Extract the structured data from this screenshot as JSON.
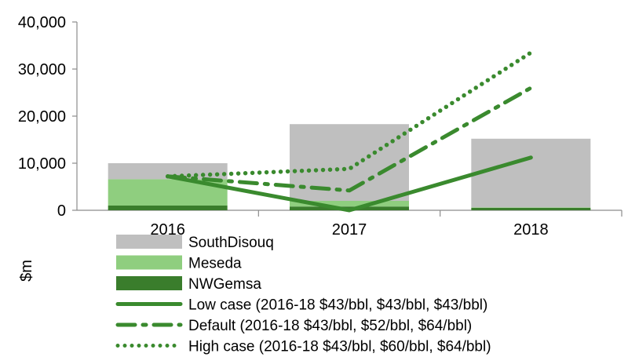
{
  "chart_data": {
    "type": "bar",
    "ylabel": "$m",
    "ylim": [
      0,
      40000
    ],
    "yticks": [
      0,
      10000,
      20000,
      30000,
      40000
    ],
    "ytick_labels": [
      "0",
      "10,000",
      "20,000",
      "30,000",
      "40,000"
    ],
    "categories": [
      "2016",
      "2017",
      "2018"
    ],
    "stacked_series": [
      {
        "name": "NWGemsa",
        "color": "#3a7d2c",
        "values": [
          1000,
          800,
          500
        ]
      },
      {
        "name": "Meseda",
        "color": "#8fce7f",
        "values": [
          5600,
          1200,
          100
        ]
      },
      {
        "name": "SouthDisouq",
        "color": "#bfbfbf",
        "values": [
          3400,
          16300,
          14600
        ]
      }
    ],
    "line_series": [
      {
        "name": "Low case (2016-18 $43/bbl, $43/bbl, $43/bbl)",
        "color": "#3a8a2e",
        "style": "solid",
        "values": [
          7200,
          0,
          11200
        ]
      },
      {
        "name": "Default (2016-18 $43/bbl, $52/bbl, $64/bbl)",
        "color": "#3a8a2e",
        "style": "dashdot",
        "values": [
          7200,
          4200,
          26000
        ]
      },
      {
        "name": "High case (2016-18 $43/bbl, $60/bbl, $64/bbl)",
        "color": "#3a8a2e",
        "style": "dotted",
        "values": [
          7200,
          8800,
          33500
        ]
      }
    ],
    "legend": [
      {
        "label": "SouthDisouq",
        "kind": "box",
        "color": "#bfbfbf"
      },
      {
        "label": "Meseda",
        "kind": "box",
        "color": "#8fce7f"
      },
      {
        "label": "NWGemsa",
        "kind": "box",
        "color": "#3a7d2c"
      },
      {
        "label": "Low case (2016-18 $43/bbl, $43/bbl, $43/bbl)",
        "kind": "line",
        "style": "solid",
        "color": "#3a8a2e"
      },
      {
        "label": "Default (2016-18 $43/bbl, $52/bbl, $64/bbl)",
        "kind": "line",
        "style": "dashdot",
        "color": "#3a8a2e"
      },
      {
        "label": "High case (2016-18 $43/bbl, $60/bbl, $64/bbl)",
        "kind": "line",
        "style": "dotted",
        "color": "#3a8a2e"
      }
    ],
    "legend_position": "bottom",
    "grid": false
  }
}
